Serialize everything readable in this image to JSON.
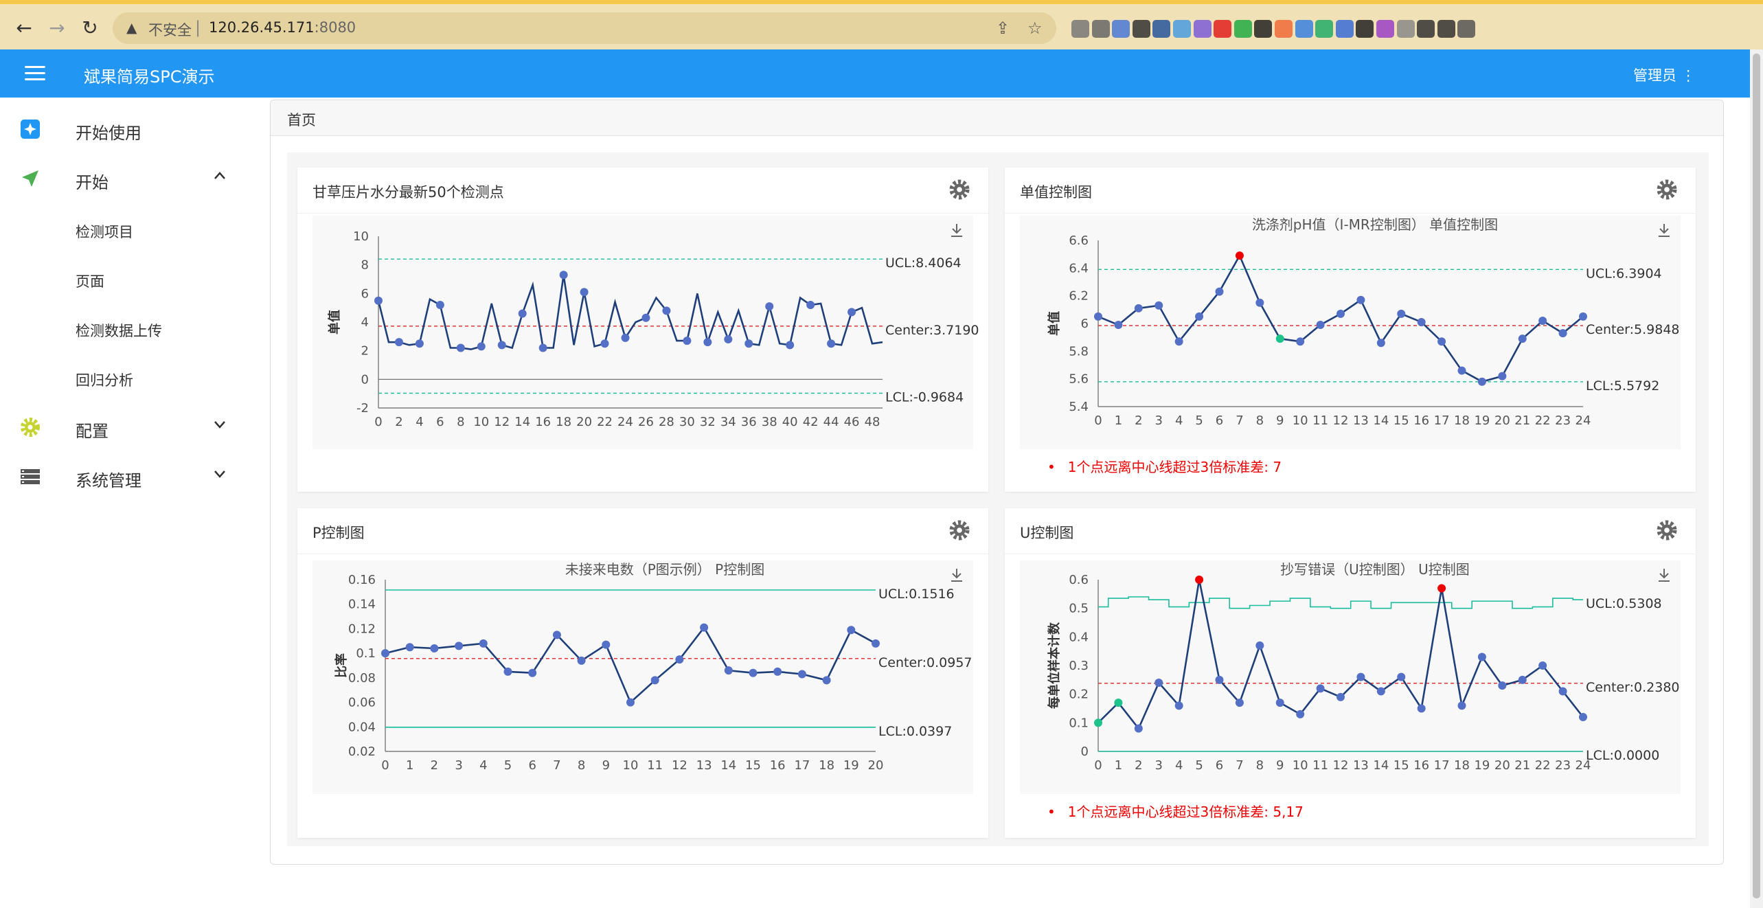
{
  "browser": {
    "insecure_label": "不安全",
    "host": "120.26.45.171",
    "port": ":8080"
  },
  "app": {
    "title": "斌果简易SPC演示",
    "user_menu": "管理员 ⋮"
  },
  "sidebar": {
    "items": [
      {
        "label": "开始使用"
      },
      {
        "label": "开始"
      },
      {
        "label": "配置"
      },
      {
        "label": "系统管理"
      }
    ],
    "subitems": [
      {
        "label": "检测项目"
      },
      {
        "label": "页面"
      },
      {
        "label": "检测数据上传"
      },
      {
        "label": "回归分析"
      }
    ]
  },
  "breadcrumb": "首页",
  "panels": [
    {
      "title": "甘草压片水分最新50个检测点",
      "warnings": [],
      "chart_data": {
        "type": "line",
        "title": "",
        "ylabel": "单值",
        "xlabel": "",
        "ylim": [
          -2,
          10
        ],
        "yticks": [
          -2,
          0,
          2,
          4,
          6,
          8,
          10
        ],
        "xticks": [
          "0",
          "2",
          "4",
          "6",
          "8",
          "10",
          "12",
          "14",
          "16",
          "18",
          "20",
          "22",
          "24",
          "26",
          "28",
          "30",
          "32",
          "34",
          "36",
          "38",
          "40",
          "42",
          "44",
          "46",
          "48"
        ],
        "x_max": 49,
        "values": [
          5.5,
          2.6,
          2.6,
          2.4,
          2.5,
          5.6,
          5.2,
          2.2,
          2.2,
          2.1,
          2.3,
          5.3,
          2.4,
          2.2,
          4.6,
          6.6,
          2.2,
          2.2,
          7.3,
          2.4,
          6.1,
          2.3,
          2.5,
          5.4,
          2.9,
          4.0,
          4.3,
          5.7,
          4.8,
          2.7,
          2.7,
          6.0,
          2.6,
          4.7,
          2.8,
          4.8,
          2.5,
          2.4,
          5.1,
          2.5,
          2.4,
          5.7,
          5.2,
          5.3,
          2.5,
          2.4,
          4.7,
          5.0,
          2.5,
          2.6
        ],
        "markers": [
          0,
          2,
          4,
          6,
          8,
          10,
          12,
          14,
          16,
          18,
          20,
          22,
          24,
          26,
          28,
          30,
          32,
          34,
          36,
          38,
          40,
          42,
          44,
          46
        ],
        "highlight_red": [],
        "highlight_green": [],
        "ucl": 8.4064,
        "center": 3.719,
        "lcl": -0.9684,
        "ucl_label": "UCL:8.4064",
        "center_label": "Center:3.7190",
        "lcl_label": "LCL:-0.9684",
        "zero_line": true
      }
    },
    {
      "title": "单值控制图",
      "warnings": [
        "1个点远离中心线超过3倍标准差: 7"
      ],
      "chart_data": {
        "type": "line",
        "title": "洗涤剂pH值（I-MR控制图） 单值控制图",
        "ylabel": "单值",
        "xlabel": "",
        "ylim": [
          5.4,
          6.6
        ],
        "yticks": [
          5.4,
          5.6,
          5.8,
          6,
          6.2,
          6.4,
          6.6
        ],
        "xticks": [
          "0",
          "1",
          "2",
          "3",
          "4",
          "5",
          "6",
          "7",
          "8",
          "9",
          "10",
          "11",
          "12",
          "13",
          "14",
          "15",
          "16",
          "17",
          "18",
          "19",
          "20",
          "21",
          "22",
          "23",
          "24"
        ],
        "x_max": 24,
        "values": [
          6.05,
          5.99,
          6.11,
          6.13,
          5.87,
          6.05,
          6.23,
          6.49,
          6.15,
          5.89,
          5.87,
          5.99,
          6.07,
          6.17,
          5.86,
          6.07,
          6.01,
          5.87,
          5.66,
          5.58,
          5.62,
          5.89,
          6.02,
          5.93,
          6.05
        ],
        "markers": "all",
        "highlight_red": [
          7
        ],
        "highlight_green": [
          9
        ],
        "ucl": 6.3904,
        "center": 5.9848,
        "lcl": 5.5792,
        "ucl_label": "UCL:6.3904",
        "center_label": "Center:5.9848",
        "lcl_label": "LCL:5.5792",
        "zero_line": false
      }
    },
    {
      "title": "P控制图",
      "warnings": [],
      "chart_data": {
        "type": "line",
        "title": "未接来电数（P图示例） P控制图",
        "ylabel": "比率",
        "xlabel": "",
        "ylim": [
          0.02,
          0.16
        ],
        "yticks": [
          0.02,
          0.04,
          0.06,
          0.08,
          0.1,
          0.12,
          0.14,
          0.16
        ],
        "xticks": [
          "0",
          "1",
          "2",
          "3",
          "4",
          "5",
          "6",
          "7",
          "8",
          "9",
          "10",
          "11",
          "12",
          "13",
          "14",
          "15",
          "16",
          "17",
          "18",
          "19",
          "20"
        ],
        "x_max": 20,
        "values": [
          0.1,
          0.105,
          0.104,
          0.106,
          0.108,
          0.085,
          0.084,
          0.115,
          0.094,
          0.107,
          0.06,
          0.078,
          0.095,
          0.121,
          0.086,
          0.084,
          0.085,
          0.083,
          0.078,
          0.119,
          0.108
        ],
        "markers": "all",
        "highlight_red": [],
        "highlight_green": [],
        "ucl": 0.1516,
        "center": 0.0957,
        "lcl": 0.0397,
        "ucl_label": "UCL:0.1516",
        "center_label": "Center:0.0957",
        "lcl_label": "LCL:0.0397",
        "zero_line": false
      }
    },
    {
      "title": "U控制图",
      "warnings": [
        "1个点远离中心线超过3倍标准差: 5,17"
      ],
      "chart_data": {
        "type": "line",
        "title": "抄写错误（U控制图） U控制图",
        "ylabel": "每单位样本计数",
        "xlabel": "",
        "ylim": [
          0,
          0.6
        ],
        "yticks": [
          0,
          0.1,
          0.2,
          0.3,
          0.4,
          0.5,
          0.6
        ],
        "xticks": [
          "0",
          "1",
          "2",
          "3",
          "4",
          "5",
          "6",
          "7",
          "8",
          "9",
          "10",
          "11",
          "12",
          "13",
          "14",
          "15",
          "16",
          "17",
          "18",
          "19",
          "20",
          "21",
          "22",
          "23",
          "24"
        ],
        "x_max": 24,
        "values": [
          0.1,
          0.17,
          0.08,
          0.24,
          0.16,
          0.6,
          0.25,
          0.17,
          0.37,
          0.17,
          0.13,
          0.22,
          0.19,
          0.26,
          0.21,
          0.26,
          0.15,
          0.57,
          0.16,
          0.33,
          0.23,
          0.25,
          0.3,
          0.21,
          0.12
        ],
        "markers": "all",
        "highlight_red": [
          5,
          17
        ],
        "highlight_green": [
          0,
          1
        ],
        "ucl": 0.5308,
        "center": 0.238,
        "lcl": 0.0,
        "ucl_label": "UCL:0.5308",
        "center_label": "Center:0.2380",
        "lcl_label": "LCL:0.0000",
        "zero_line": false
      }
    }
  ],
  "colors": {
    "appbar": "#2196f3",
    "series": "#1f3f7a",
    "marker": "#5470c6",
    "center": "#e22222",
    "limit": "#1abc9c",
    "red_point": "#ee0000",
    "green_point": "#1ec38b"
  },
  "icons": [
    "back-icon",
    "forward-icon",
    "reload-icon",
    "warning-icon",
    "share-icon",
    "star-icon",
    "menu-icon",
    "sparkle-icon",
    "send-icon",
    "gear-icon",
    "list-icon",
    "chevron-up-icon",
    "chevron-down-icon",
    "download-icon"
  ]
}
